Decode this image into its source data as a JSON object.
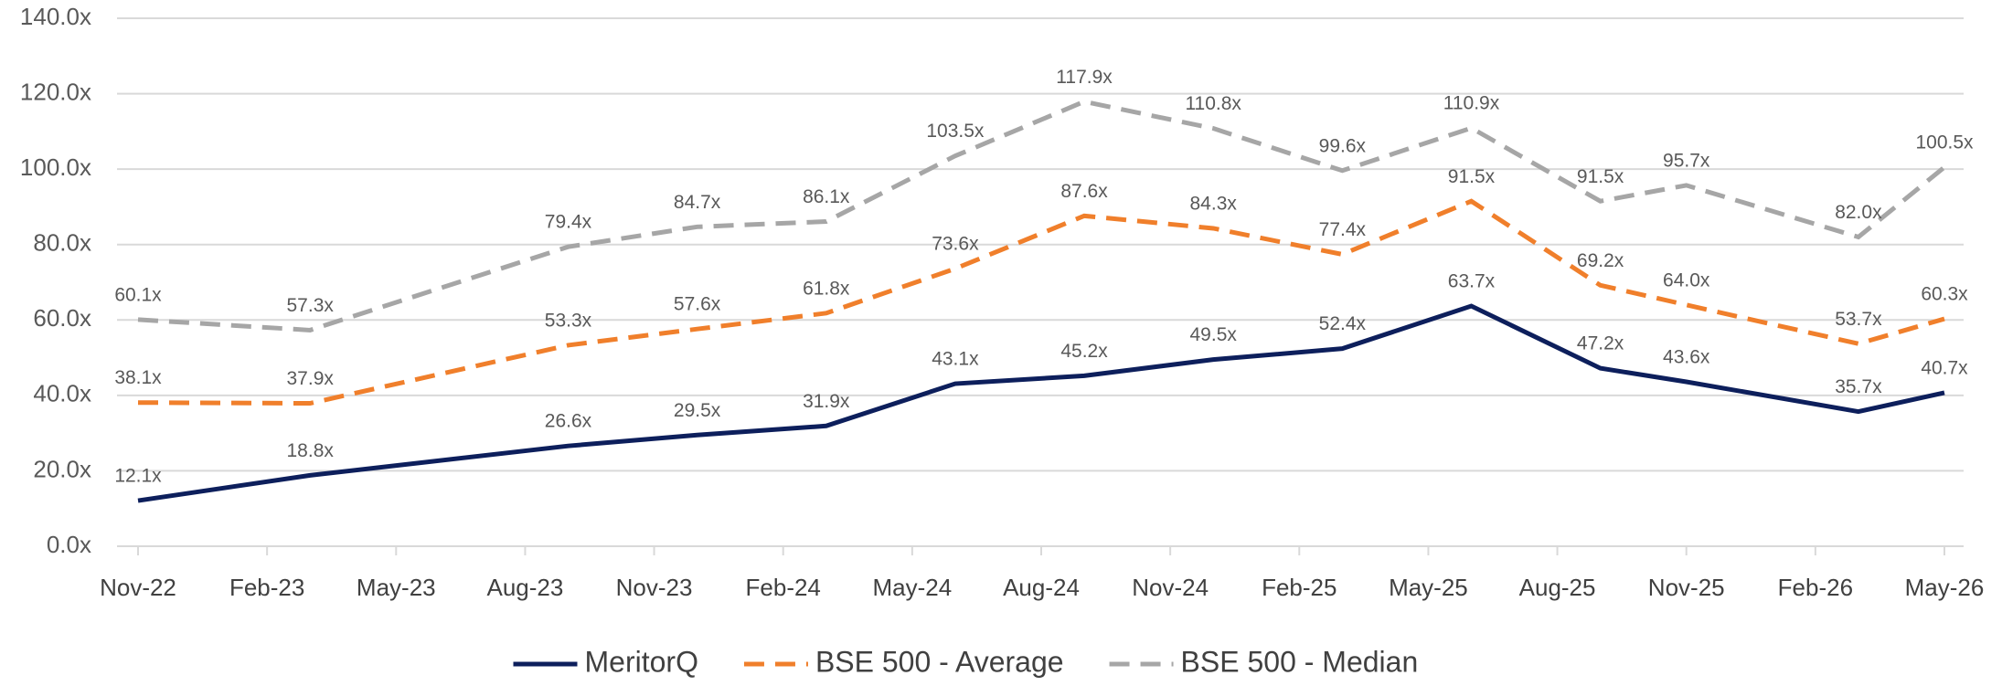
{
  "chart_data": {
    "type": "line",
    "x": [
      0,
      4,
      10,
      13,
      16,
      19,
      22,
      25,
      28,
      31,
      34,
      36,
      40,
      42
    ],
    "xlim": [
      0,
      42
    ],
    "xticks": [
      {
        "value": 0,
        "label": "Nov-22"
      },
      {
        "value": 3,
        "label": "Feb-23"
      },
      {
        "value": 6,
        "label": "May-23"
      },
      {
        "value": 9,
        "label": "Aug-23"
      },
      {
        "value": 12,
        "label": "Nov-23"
      },
      {
        "value": 15,
        "label": "Feb-24"
      },
      {
        "value": 18,
        "label": "May-24"
      },
      {
        "value": 21,
        "label": "Aug-24"
      },
      {
        "value": 24,
        "label": "Nov-24"
      },
      {
        "value": 27,
        "label": "Feb-25"
      },
      {
        "value": 30,
        "label": "May-25"
      },
      {
        "value": 33,
        "label": "Aug-25"
      },
      {
        "value": 36,
        "label": "Nov-25"
      },
      {
        "value": 39,
        "label": "Feb-26"
      },
      {
        "value": 42,
        "label": "May-26"
      }
    ],
    "ylim": [
      0,
      140
    ],
    "yticks": [
      {
        "value": 0,
        "label": "0.0x"
      },
      {
        "value": 20,
        "label": "20.0x"
      },
      {
        "value": 40,
        "label": "40.0x"
      },
      {
        "value": 60,
        "label": "60.0x"
      },
      {
        "value": 80,
        "label": "80.0x"
      },
      {
        "value": 100,
        "label": "100.0x"
      },
      {
        "value": 120,
        "label": "120.0x"
      },
      {
        "value": 140,
        "label": "140.0x"
      }
    ],
    "grid": true,
    "legend": "bottom",
    "series": [
      {
        "name": "MeritorQ",
        "color": "#0d1f5c",
        "dash": false,
        "values": [
          12.1,
          18.8,
          26.6,
          29.5,
          31.9,
          43.1,
          45.2,
          49.5,
          52.4,
          63.7,
          47.2,
          43.6,
          35.7,
          40.7
        ],
        "value_labels": [
          "12.1x",
          "18.8x",
          "26.6x",
          "29.5x",
          "31.9x",
          "43.1x",
          "45.2x",
          "49.5x",
          "52.4x",
          "63.7x",
          "47.2x",
          "43.6x",
          "35.7x",
          "40.7x"
        ]
      },
      {
        "name": "BSE 500 - Average",
        "color": "#f07f2b",
        "dash": true,
        "values": [
          38.1,
          37.9,
          53.3,
          57.6,
          61.8,
          73.6,
          87.6,
          84.3,
          77.4,
          91.5,
          69.2,
          64.0,
          53.7,
          60.3
        ],
        "value_labels": [
          "38.1x",
          "37.9x",
          "53.3x",
          "57.6x",
          "61.8x",
          "73.6x",
          "87.6x",
          "84.3x",
          "77.4x",
          "91.5x",
          "69.2x",
          "64.0x",
          "53.7x",
          "60.3x"
        ]
      },
      {
        "name": "BSE 500 - Median",
        "color": "#a6a6a6",
        "dash": true,
        "values": [
          60.1,
          57.3,
          79.4,
          84.7,
          86.1,
          103.5,
          117.9,
          110.8,
          99.6,
          110.9,
          91.5,
          95.7,
          82.0,
          100.5
        ],
        "value_labels": [
          "60.1x",
          "57.3x",
          "79.4x",
          "84.7x",
          "86.1x",
          "103.5x",
          "117.9x",
          "110.8x",
          "99.6x",
          "110.9x",
          "91.5x",
          "95.7x",
          "82.0x",
          "100.5x"
        ]
      }
    ]
  }
}
